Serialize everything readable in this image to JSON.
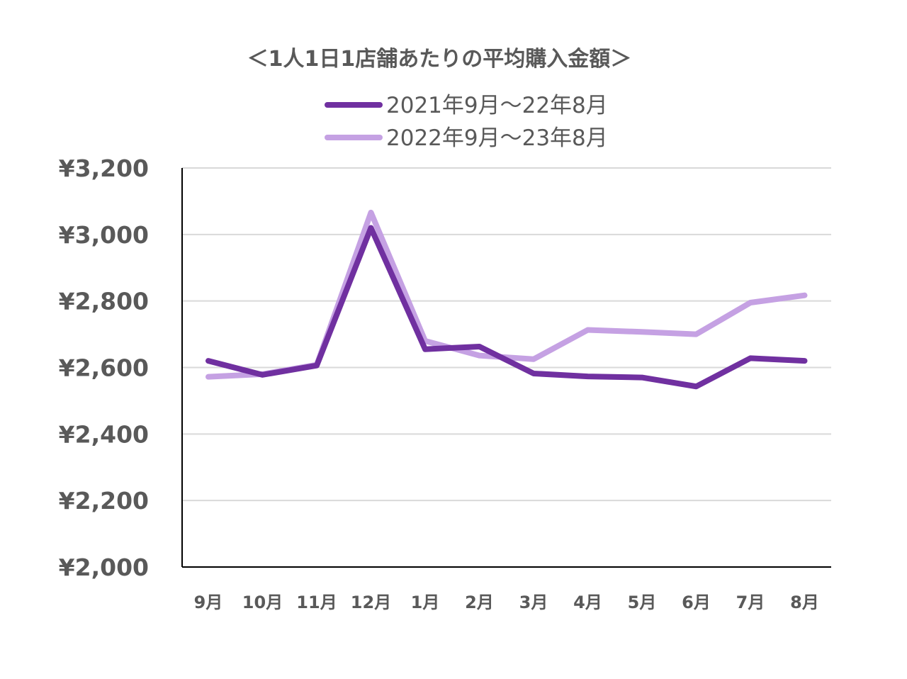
{
  "chart_data": {
    "type": "line",
    "title": "＜1人1日1店舗あたりの平均購入金額＞",
    "xlabel": "",
    "ylabel": "",
    "categories": [
      "9月",
      "10月",
      "11月",
      "12月",
      "1月",
      "2月",
      "3月",
      "4月",
      "5月",
      "6月",
      "7月",
      "8月"
    ],
    "ylim": [
      2000,
      3200
    ],
    "yticks": [
      3200,
      3000,
      2800,
      2600,
      2400,
      2200,
      2000
    ],
    "ytick_labels": [
      "¥3,200",
      "¥3,000",
      "¥2,800",
      "¥2,600",
      "¥2,400",
      "¥2,200",
      "¥2,000"
    ],
    "grid": true,
    "legend_position": "top-center",
    "series": [
      {
        "name": "2021年9月～22年8月",
        "color": "#7030a0",
        "values": [
          2620,
          2578,
          2606,
          3020,
          2655,
          2663,
          2582,
          2573,
          2570,
          2543,
          2628,
          2620
        ]
      },
      {
        "name": "2022年9月～23年8月",
        "color": "#c5a1e3",
        "values": [
          2572,
          2580,
          2608,
          3066,
          2680,
          2636,
          2625,
          2713,
          2707,
          2700,
          2795,
          2817
        ]
      }
    ]
  }
}
